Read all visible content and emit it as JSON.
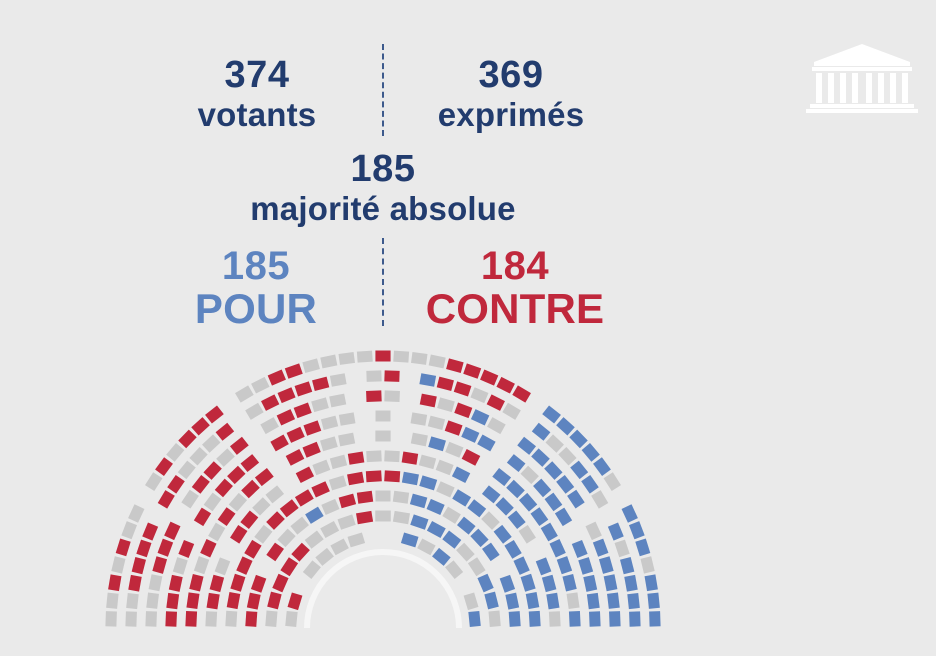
{
  "stats": {
    "votants": {
      "value": "374",
      "label": "votants"
    },
    "exprimes": {
      "value": "369",
      "label": "exprimés"
    },
    "majorite": {
      "value": "185",
      "label": "majorité absolue"
    },
    "pour": {
      "value": "185",
      "label": "POUR"
    },
    "contre": {
      "value": "184",
      "label": "CONTRE"
    }
  },
  "colors": {
    "background": "#eaeaea",
    "pour": "#5d84c0",
    "contre": "#c0283c",
    "absent": "#c9c9c9",
    "stat_text": "#223c6e"
  },
  "logo": {
    "icon": "assemblee-nationale-building-icon"
  }
}
